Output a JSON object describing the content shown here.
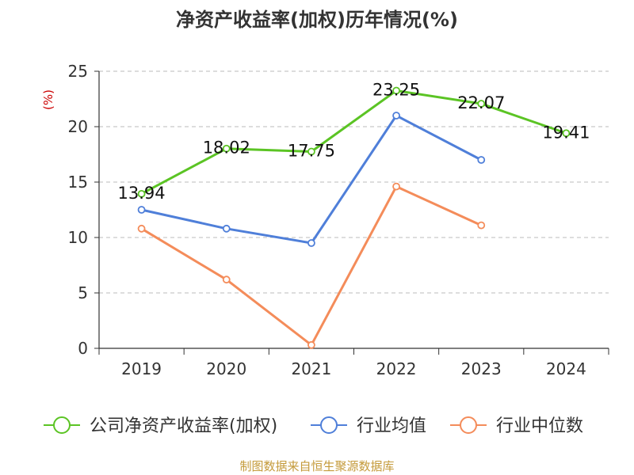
{
  "chart_data": {
    "type": "line",
    "title": "净资产收益率(加权)历年情况(%)",
    "ylabel": "(%)",
    "xlabel": "",
    "categories": [
      "2019",
      "2020",
      "2021",
      "2022",
      "2023",
      "2024"
    ],
    "ylim": [
      0,
      25
    ],
    "yticks": [
      0,
      5,
      10,
      15,
      20,
      25
    ],
    "grid": true,
    "legend_position": "bottom",
    "series": [
      {
        "name": "公司净资产收益率(加权)",
        "color": "#5bc424",
        "values": [
          13.94,
          18.02,
          17.75,
          23.25,
          22.07,
          19.41
        ],
        "labels": [
          "13.94",
          "18.02",
          "17.75",
          "23.25",
          "22.07",
          "19.41"
        ]
      },
      {
        "name": "行业均值",
        "color": "#4f7fd9",
        "values": [
          12.5,
          10.8,
          9.5,
          21.0,
          17.0,
          null
        ]
      },
      {
        "name": "行业中位数",
        "color": "#f48c5a",
        "values": [
          10.8,
          6.2,
          0.3,
          14.6,
          11.1,
          null
        ]
      }
    ]
  },
  "footer": "制图数据来自恒生聚源数据库"
}
